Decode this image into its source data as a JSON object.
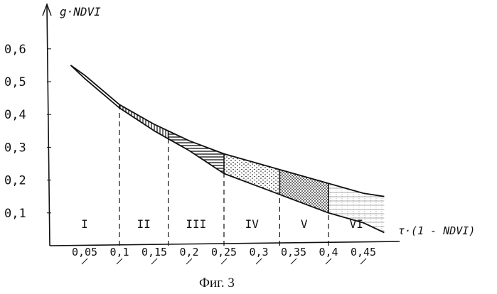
{
  "chart_data": {
    "type": "line",
    "title": "",
    "ylabel": "g·NDVI",
    "xlabel": "τ·(1 - NDVI)",
    "caption": "Фиг. 3",
    "xlim": [
      0.0,
      0.5
    ],
    "ylim": [
      0.0,
      0.6
    ],
    "x_ticks": [
      {
        "v": 0.05,
        "label": "0,05"
      },
      {
        "v": 0.1,
        "label": "0,1"
      },
      {
        "v": 0.15,
        "label": "0,15"
      },
      {
        "v": 0.2,
        "label": "0,2"
      },
      {
        "v": 0.25,
        "label": "0,25"
      },
      {
        "v": 0.3,
        "label": "0,3"
      },
      {
        "v": 0.35,
        "label": "0,35"
      },
      {
        "v": 0.4,
        "label": "0,4"
      },
      {
        "v": 0.45,
        "label": "0,45"
      }
    ],
    "y_ticks": [
      {
        "v": 0.1,
        "label": "0,1"
      },
      {
        "v": 0.2,
        "label": "0,2"
      },
      {
        "v": 0.3,
        "label": "0,3"
      },
      {
        "v": 0.4,
        "label": "0,4"
      },
      {
        "v": 0.5,
        "label": "0,5"
      },
      {
        "v": 0.6,
        "label": "0,6"
      }
    ],
    "series": [
      {
        "name": "",
        "x": [
          0.03,
          0.05,
          0.1,
          0.15,
          0.2,
          0.25,
          0.3,
          0.35,
          0.4,
          0.45,
          0.48
        ],
        "values": [
          0.55,
          0.52,
          0.43,
          0.37,
          0.32,
          0.28,
          0.25,
          0.22,
          0.19,
          0.16,
          0.15
        ]
      },
      {
        "name": "",
        "x": [
          0.03,
          0.05,
          0.1,
          0.15,
          0.2,
          0.25,
          0.3,
          0.35,
          0.4,
          0.45,
          0.48
        ],
        "values": [
          0.55,
          0.51,
          0.42,
          0.35,
          0.29,
          0.22,
          0.18,
          0.14,
          0.1,
          0.07,
          0.04
        ]
      }
    ],
    "zones": [
      {
        "label": "I",
        "from": 0.0,
        "to": 0.1,
        "pattern": "none"
      },
      {
        "label": "II",
        "from": 0.1,
        "to": 0.17,
        "pattern": "vertical"
      },
      {
        "label": "III",
        "from": 0.17,
        "to": 0.25,
        "pattern": "horizontal"
      },
      {
        "label": "IV",
        "from": 0.25,
        "to": 0.33,
        "pattern": "dots"
      },
      {
        "label": "V",
        "from": 0.33,
        "to": 0.4,
        "pattern": "dense-dots"
      },
      {
        "label": "VI",
        "from": 0.4,
        "to": 0.48,
        "pattern": "grid"
      }
    ],
    "y_axis_labels": [
      "0,6",
      "0,5",
      "0,4",
      "0,3",
      "0,2",
      "0,1"
    ],
    "zone_labels": [
      "I",
      "II",
      "III",
      "IV",
      "V",
      "VI"
    ],
    "grid": false,
    "legend": "none"
  }
}
